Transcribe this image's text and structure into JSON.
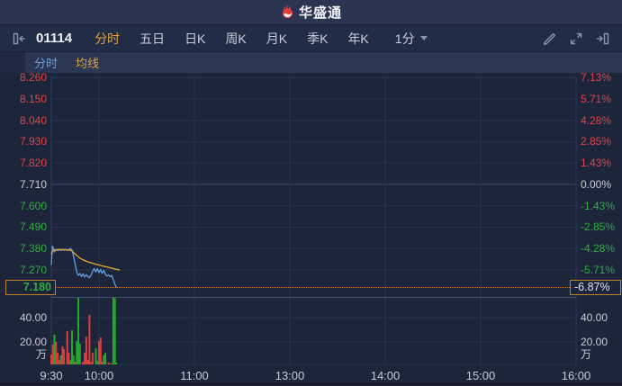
{
  "topbar": {
    "brand": "华盛通",
    "logo_icon": "flame-swirl-icon"
  },
  "toolbar": {
    "stock_code": "01114",
    "items": [
      "分时",
      "五日",
      "日K",
      "周K",
      "月K",
      "季K",
      "年K"
    ],
    "active_item": "分时",
    "interval": "1分",
    "left_icon": "collapse-left-icon",
    "right_icons": [
      "draw-pencil-icon",
      "expand-fullscreen-icon",
      "collapse-right-icon"
    ]
  },
  "legend": {
    "items": [
      {
        "label": "分时",
        "color": "#6ba1da"
      },
      {
        "label": "均线",
        "color": "#d9a23c"
      }
    ]
  },
  "colors": {
    "up": "#e0444c",
    "down": "#2fad44",
    "flat": "#c9ced8",
    "price_line": "#62a0e8",
    "ma_line": "#dba03c",
    "marker": "#bf7f2c",
    "vol_up": "#d84040",
    "vol_down": "#27a52e",
    "grid": "#27324d",
    "grid_zero": "#3b4a6a",
    "grid_edge": "#2e3c5e"
  },
  "chart_data": {
    "type": "line",
    "title": "",
    "y_ticks": [
      {
        "price": "8.260",
        "pct": "7.13%"
      },
      {
        "price": "8.150",
        "pct": "5.71%"
      },
      {
        "price": "8.040",
        "pct": "4.28%"
      },
      {
        "price": "7.930",
        "pct": "2.85%"
      },
      {
        "price": "7.820",
        "pct": "1.43%"
      },
      {
        "price": "7.710",
        "pct": "0.00%"
      },
      {
        "price": "7.600",
        "pct": "-1.43%"
      },
      {
        "price": "7.490",
        "pct": "-2.85%"
      },
      {
        "price": "7.380",
        "pct": "-4.28%"
      },
      {
        "price": "7.270",
        "pct": "-5.71%"
      }
    ],
    "prev_close": 7.71,
    "price_top": 8.26,
    "zero_index": 5,
    "current_price": "7.180",
    "current_change": "-6.87%",
    "x_ticks": [
      {
        "label": "9:30",
        "min": 0
      },
      {
        "label": "10:00",
        "min": 30
      },
      {
        "label": "11:00",
        "min": 90
      },
      {
        "label": "13:00",
        "min": 150
      },
      {
        "label": "14:00",
        "min": 210
      },
      {
        "label": "15:00",
        "min": 270
      },
      {
        "label": "16:00",
        "min": 330
      }
    ],
    "session_minutes": 330,
    "volume_ticks": [
      40,
      20
    ],
    "volume_tick_labels": [
      "40.00",
      "20.00"
    ],
    "volume_unit": "万",
    "series": [
      {
        "name": "分时",
        "points": [
          [
            0,
            7.295
          ],
          [
            0.7,
            7.392
          ],
          [
            1.5,
            7.378
          ],
          [
            2,
            7.362
          ],
          [
            3,
            7.376
          ],
          [
            4,
            7.368
          ],
          [
            5,
            7.376
          ],
          [
            6,
            7.37
          ],
          [
            7,
            7.376
          ],
          [
            8,
            7.371
          ],
          [
            9,
            7.376
          ],
          [
            10,
            7.37
          ],
          [
            11,
            7.374
          ],
          [
            12,
            7.38
          ],
          [
            13,
            7.372
          ],
          [
            14,
            7.34
          ],
          [
            15,
            7.3
          ],
          [
            16,
            7.258
          ],
          [
            17,
            7.242
          ],
          [
            18,
            7.252
          ],
          [
            19,
            7.235
          ],
          [
            20,
            7.25
          ],
          [
            21,
            7.234
          ],
          [
            22,
            7.246
          ],
          [
            23,
            7.236
          ],
          [
            24,
            7.23
          ],
          [
            25,
            7.244
          ],
          [
            26,
            7.262
          ],
          [
            27,
            7.277
          ],
          [
            28,
            7.26
          ],
          [
            29,
            7.277
          ],
          [
            30,
            7.256
          ],
          [
            31,
            7.272
          ],
          [
            32,
            7.252
          ],
          [
            33,
            7.268
          ],
          [
            34,
            7.248
          ],
          [
            35,
            7.238
          ],
          [
            36,
            7.244
          ],
          [
            37,
            7.235
          ],
          [
            38,
            7.242
          ],
          [
            39,
            7.22
          ],
          [
            40,
            7.196
          ],
          [
            41,
            7.18
          ]
        ]
      },
      {
        "name": "均线",
        "points": [
          [
            0,
            7.35
          ],
          [
            1,
            7.368
          ],
          [
            2,
            7.372
          ],
          [
            4,
            7.374
          ],
          [
            6,
            7.375
          ],
          [
            8,
            7.374
          ],
          [
            10,
            7.373
          ],
          [
            12,
            7.371
          ],
          [
            13,
            7.367
          ],
          [
            14,
            7.36
          ],
          [
            15,
            7.352
          ],
          [
            16,
            7.344
          ],
          [
            18,
            7.331
          ],
          [
            20,
            7.322
          ],
          [
            22,
            7.315
          ],
          [
            24,
            7.309
          ],
          [
            26,
            7.304
          ],
          [
            28,
            7.299
          ],
          [
            30,
            7.295
          ],
          [
            32,
            7.291
          ],
          [
            34,
            7.287
          ],
          [
            36,
            7.283
          ],
          [
            38,
            7.279
          ],
          [
            40,
            7.275
          ],
          [
            43,
            7.269
          ]
        ]
      }
    ],
    "volume": [
      [
        0,
        9.6,
        "r"
      ],
      [
        1,
        17.8,
        "r"
      ],
      [
        2,
        25.9,
        "g"
      ],
      [
        3,
        20,
        "r"
      ],
      [
        4,
        11,
        "r"
      ],
      [
        5,
        5,
        "r"
      ],
      [
        6,
        8.9,
        "g"
      ],
      [
        7,
        16.3,
        "r"
      ],
      [
        8,
        14,
        "r"
      ],
      [
        10,
        28.9,
        "r"
      ],
      [
        11,
        11,
        "r"
      ],
      [
        12,
        5,
        "g"
      ],
      [
        13,
        29.6,
        "g"
      ],
      [
        14,
        8.9,
        "g"
      ],
      [
        15,
        3.7,
        "r"
      ],
      [
        16,
        20.7,
        "g"
      ],
      [
        17,
        57,
        "g"
      ],
      [
        18,
        18.5,
        "g"
      ],
      [
        20,
        3.7,
        "r"
      ],
      [
        21,
        11,
        "r"
      ],
      [
        22,
        24.4,
        "r"
      ],
      [
        23,
        5.2,
        "r"
      ],
      [
        24,
        42.2,
        "r"
      ],
      [
        25,
        3.7,
        "r"
      ],
      [
        26,
        11,
        "r"
      ],
      [
        28,
        14.8,
        "g"
      ],
      [
        29,
        4.4,
        "g"
      ],
      [
        30,
        20.7,
        "r"
      ],
      [
        31,
        23.7,
        "r"
      ],
      [
        32,
        3.7,
        "r"
      ],
      [
        33,
        8.9,
        "g"
      ],
      [
        34,
        11,
        "g"
      ],
      [
        36,
        3,
        "r"
      ],
      [
        37,
        2.2,
        "r"
      ],
      [
        38,
        2.2,
        "g"
      ],
      [
        39,
        57,
        "g"
      ],
      [
        40,
        56,
        "g"
      ],
      [
        41,
        3,
        "g"
      ],
      [
        42,
        1.1,
        "r"
      ]
    ]
  }
}
